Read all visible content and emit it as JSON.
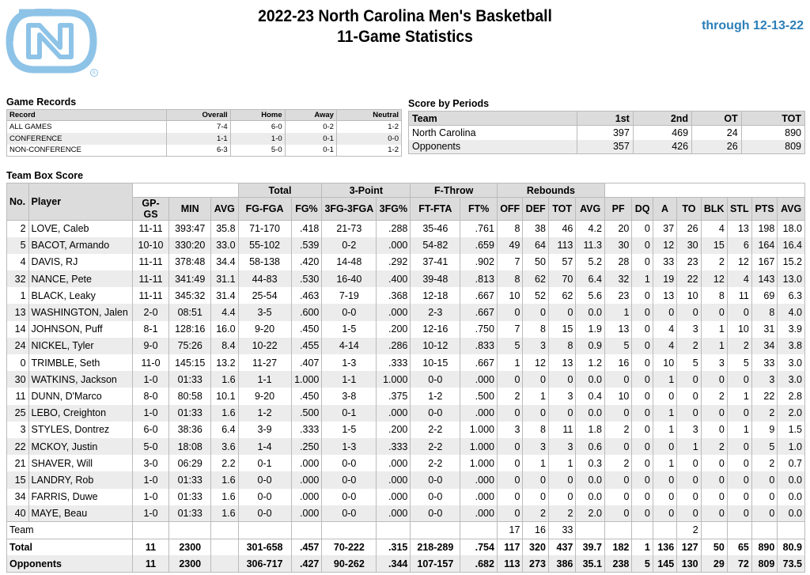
{
  "header": {
    "title_line1": "2022-23 North Carolina Men's Basketball",
    "title_line2": "11-Game Statistics",
    "through": "through 12-13-22",
    "logo_text": "NC",
    "logo_color": "#8ec3e8"
  },
  "game_records": {
    "heading": "Game Records",
    "columns": [
      "Record",
      "Overall",
      "Home",
      "Away",
      "Neutral"
    ],
    "rows": [
      [
        "ALL GAMES",
        "7-4",
        "6-0",
        "0-2",
        "1-2"
      ],
      [
        "CONFERENCE",
        "1-1",
        "1-0",
        "0-1",
        "0-0"
      ],
      [
        "NON-CONFERENCE",
        "6-3",
        "5-0",
        "0-1",
        "1-2"
      ]
    ]
  },
  "score_by_periods": {
    "heading": "Score by Periods",
    "columns": [
      "Team",
      "1st",
      "2nd",
      "OT",
      "TOT"
    ],
    "rows": [
      [
        "North Carolina",
        "397",
        "469",
        "24",
        "890"
      ],
      [
        "Opponents",
        "357",
        "426",
        "26",
        "809"
      ]
    ]
  },
  "box_score": {
    "heading": "Team Box Score",
    "group_headers": [
      "Total",
      "3-Point",
      "F-Throw",
      "Rebounds"
    ],
    "columns": [
      "No.",
      "Player",
      "GP-GS",
      "MIN",
      "AVG",
      "FG-FGA",
      "FG%",
      "3FG-3FGA",
      "3FG%",
      "FT-FTA",
      "FT%",
      "OFF",
      "DEF",
      "TOT",
      "AVG",
      "PF",
      "DQ",
      "A",
      "TO",
      "BLK",
      "STL",
      "PTS",
      "AVG"
    ],
    "players": [
      [
        "2",
        "LOVE, Caleb",
        "11-11",
        "393:47",
        "35.8",
        "71-170",
        ".418",
        "21-73",
        ".288",
        "35-46",
        ".761",
        "8",
        "38",
        "46",
        "4.2",
        "20",
        "0",
        "37",
        "26",
        "4",
        "13",
        "198",
        "18.0"
      ],
      [
        "5",
        "BACOT, Armando",
        "10-10",
        "330:20",
        "33.0",
        "55-102",
        ".539",
        "0-2",
        ".000",
        "54-82",
        ".659",
        "49",
        "64",
        "113",
        "11.3",
        "30",
        "0",
        "12",
        "30",
        "15",
        "6",
        "164",
        "16.4"
      ],
      [
        "4",
        "DAVIS, RJ",
        "11-11",
        "378:48",
        "34.4",
        "58-138",
        ".420",
        "14-48",
        ".292",
        "37-41",
        ".902",
        "7",
        "50",
        "57",
        "5.2",
        "28",
        "0",
        "33",
        "23",
        "2",
        "12",
        "167",
        "15.2"
      ],
      [
        "32",
        "NANCE, Pete",
        "11-11",
        "341:49",
        "31.1",
        "44-83",
        ".530",
        "16-40",
        ".400",
        "39-48",
        ".813",
        "8",
        "62",
        "70",
        "6.4",
        "32",
        "1",
        "19",
        "22",
        "12",
        "4",
        "143",
        "13.0"
      ],
      [
        "1",
        "BLACK, Leaky",
        "11-11",
        "345:32",
        "31.4",
        "25-54",
        ".463",
        "7-19",
        ".368",
        "12-18",
        ".667",
        "10",
        "52",
        "62",
        "5.6",
        "23",
        "0",
        "13",
        "10",
        "8",
        "11",
        "69",
        "6.3"
      ],
      [
        "13",
        "WASHINGTON, Jalen",
        "2-0",
        "08:51",
        "4.4",
        "3-5",
        ".600",
        "0-0",
        ".000",
        "2-3",
        ".667",
        "0",
        "0",
        "0",
        "0.0",
        "1",
        "0",
        "0",
        "0",
        "0",
        "0",
        "8",
        "4.0"
      ],
      [
        "14",
        "JOHNSON, Puff",
        "8-1",
        "128:16",
        "16.0",
        "9-20",
        ".450",
        "1-5",
        ".200",
        "12-16",
        ".750",
        "7",
        "8",
        "15",
        "1.9",
        "13",
        "0",
        "4",
        "3",
        "1",
        "10",
        "31",
        "3.9"
      ],
      [
        "24",
        "NICKEL, Tyler",
        "9-0",
        "75:26",
        "8.4",
        "10-22",
        ".455",
        "4-14",
        ".286",
        "10-12",
        ".833",
        "5",
        "3",
        "8",
        "0.9",
        "5",
        "0",
        "4",
        "2",
        "1",
        "2",
        "34",
        "3.8"
      ],
      [
        "0",
        "TRIMBLE, Seth",
        "11-0",
        "145:15",
        "13.2",
        "11-27",
        ".407",
        "1-3",
        ".333",
        "10-15",
        ".667",
        "1",
        "12",
        "13",
        "1.2",
        "16",
        "0",
        "10",
        "5",
        "3",
        "5",
        "33",
        "3.0"
      ],
      [
        "30",
        "WATKINS, Jackson",
        "1-0",
        "01:33",
        "1.6",
        "1-1",
        "1.000",
        "1-1",
        "1.000",
        "0-0",
        ".000",
        "0",
        "0",
        "0",
        "0.0",
        "0",
        "0",
        "1",
        "0",
        "0",
        "0",
        "3",
        "3.0"
      ],
      [
        "11",
        "DUNN, D'Marco",
        "8-0",
        "80:58",
        "10.1",
        "9-20",
        ".450",
        "3-8",
        ".375",
        "1-2",
        ".500",
        "2",
        "1",
        "3",
        "0.4",
        "10",
        "0",
        "0",
        "0",
        "2",
        "1",
        "22",
        "2.8"
      ],
      [
        "25",
        "LEBO, Creighton",
        "1-0",
        "01:33",
        "1.6",
        "1-2",
        ".500",
        "0-1",
        ".000",
        "0-0",
        ".000",
        "0",
        "0",
        "0",
        "0.0",
        "0",
        "0",
        "1",
        "0",
        "0",
        "0",
        "2",
        "2.0"
      ],
      [
        "3",
        "STYLES, Dontrez",
        "6-0",
        "38:36",
        "6.4",
        "3-9",
        ".333",
        "1-5",
        ".200",
        "2-2",
        "1.000",
        "3",
        "8",
        "11",
        "1.8",
        "2",
        "0",
        "1",
        "3",
        "0",
        "1",
        "9",
        "1.5"
      ],
      [
        "22",
        "MCKOY, Justin",
        "5-0",
        "18:08",
        "3.6",
        "1-4",
        ".250",
        "1-3",
        ".333",
        "2-2",
        "1.000",
        "0",
        "3",
        "3",
        "0.6",
        "0",
        "0",
        "0",
        "1",
        "2",
        "0",
        "5",
        "1.0"
      ],
      [
        "21",
        "SHAVER, Will",
        "3-0",
        "06:29",
        "2.2",
        "0-1",
        ".000",
        "0-0",
        ".000",
        "2-2",
        "1.000",
        "0",
        "1",
        "1",
        "0.3",
        "2",
        "0",
        "1",
        "0",
        "0",
        "0",
        "2",
        "0.7"
      ],
      [
        "15",
        "LANDRY, Rob",
        "1-0",
        "01:33",
        "1.6",
        "0-0",
        ".000",
        "0-0",
        ".000",
        "0-0",
        ".000",
        "0",
        "0",
        "0",
        "0.0",
        "0",
        "0",
        "0",
        "0",
        "0",
        "0",
        "0",
        "0.0"
      ],
      [
        "34",
        "FARRIS, Duwe",
        "1-0",
        "01:33",
        "1.6",
        "0-0",
        ".000",
        "0-0",
        ".000",
        "0-0",
        ".000",
        "0",
        "0",
        "0",
        "0.0",
        "0",
        "0",
        "0",
        "0",
        "0",
        "0",
        "0",
        "0.0"
      ],
      [
        "40",
        "MAYE, Beau",
        "1-0",
        "01:33",
        "1.6",
        "0-0",
        ".000",
        "0-0",
        ".000",
        "0-0",
        ".000",
        "0",
        "2",
        "2",
        "2.0",
        "0",
        "0",
        "0",
        "0",
        "0",
        "0",
        "0",
        "0.0"
      ]
    ],
    "team_row": [
      "",
      "Team",
      "",
      "",
      "",
      "",
      "",
      "",
      "",
      "",
      "",
      "17",
      "16",
      "33",
      "",
      "",
      "",
      "",
      "2",
      "",
      "",
      "",
      ""
    ],
    "total_row": [
      "Total",
      "",
      "11",
      "2300",
      "",
      "301-658",
      ".457",
      "70-222",
      ".315",
      "218-289",
      ".754",
      "117",
      "320",
      "437",
      "39.7",
      "182",
      "1",
      "136",
      "127",
      "50",
      "65",
      "890",
      "80.9"
    ],
    "opponents_row": [
      "Opponents",
      "",
      "11",
      "2300",
      "",
      "306-717",
      ".427",
      "90-262",
      ".344",
      "107-157",
      ".682",
      "113",
      "273",
      "386",
      "35.1",
      "238",
      "5",
      "145",
      "130",
      "29",
      "72",
      "809",
      "73.5"
    ]
  }
}
